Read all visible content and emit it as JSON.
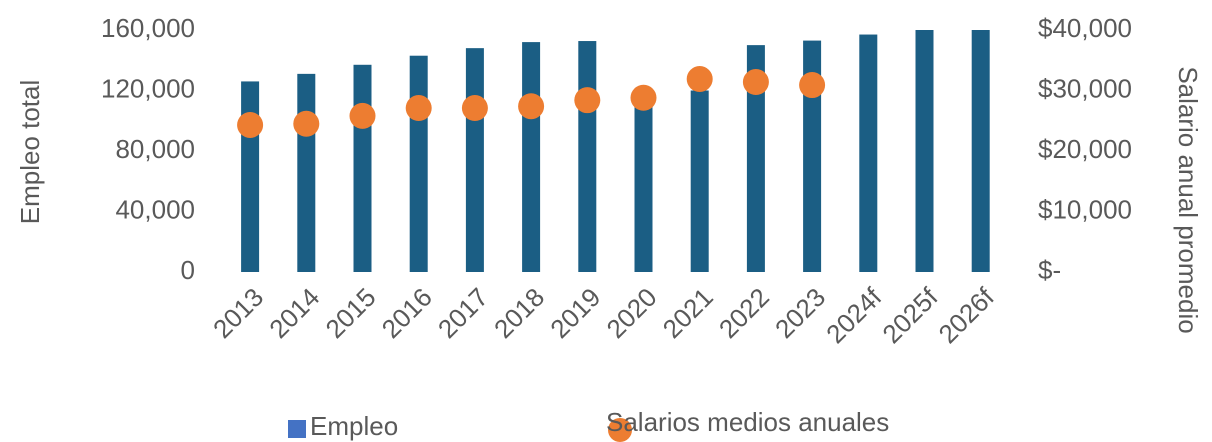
{
  "chart_data": {
    "type": "bar",
    "categories": [
      "2013",
      "2014",
      "2015",
      "2016",
      "2017",
      "2018",
      "2019",
      "2020",
      "2021",
      "2022",
      "2023",
      "2024f",
      "2025f",
      "2026f"
    ],
    "series": [
      {
        "name": "Empleo",
        "color": "#1b5e84",
        "legend_color": "#4472c4",
        "values": [
          126000,
          131000,
          137000,
          143000,
          148000,
          152000,
          152700,
          113000,
          120000,
          150000,
          153000,
          157000,
          160000,
          160000
        ]
      },
      {
        "name": "Salarios medios anuales",
        "type": "scatter",
        "axis": "y2",
        "color": "#ed7d31",
        "values": [
          24300,
          24500,
          25800,
          27100,
          27100,
          27400,
          28400,
          28800,
          31900,
          31400,
          30900,
          null,
          null,
          null
        ]
      }
    ],
    "ylabel": "Empleo total",
    "y2label": "Salario anual promedio",
    "ylim": [
      0,
      160000
    ],
    "yticks": [
      0,
      {
        "value": 40000,
        "label": "40,000"
      },
      {
        "value": 80000,
        "label": "80,000"
      },
      {
        "value": 120000,
        "label": "120,000"
      },
      {
        "value": 160000,
        "label": "160,000"
      }
    ],
    "y2lim": [
      0,
      40000
    ],
    "y2ticks": [
      {
        "value": 0,
        "label": "$-"
      },
      {
        "value": 10000,
        "label": "$10,000"
      },
      {
        "value": 20000,
        "label": "$20,000"
      },
      {
        "value": 30000,
        "label": "$30,000"
      },
      {
        "value": 40000,
        "label": "$40,000"
      }
    ],
    "grid": false,
    "legend": "bottom"
  }
}
